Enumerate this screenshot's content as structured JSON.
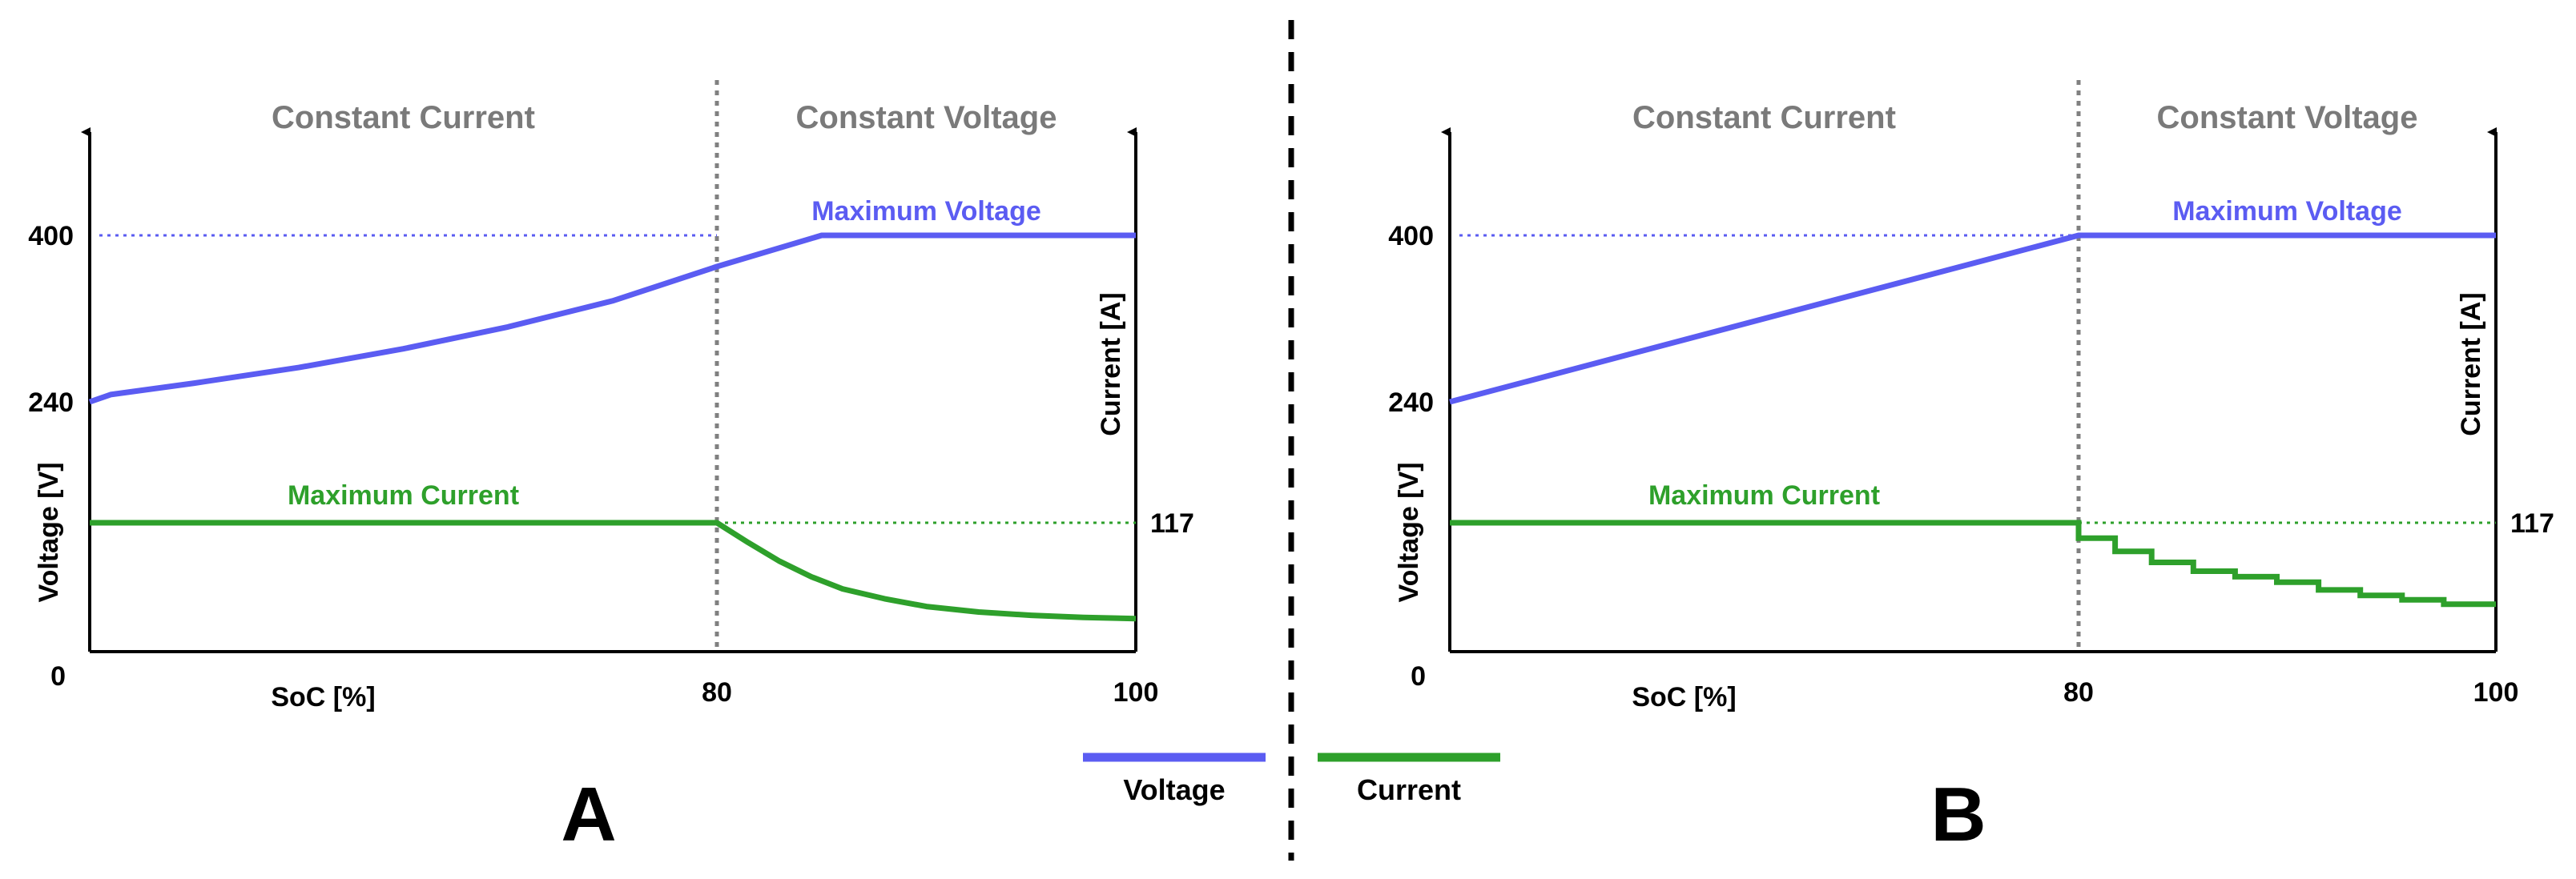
{
  "legend": {
    "voltage_label": "Voltage",
    "current_label": "Current",
    "voltage_color": "#5b5cf2",
    "current_color": "#2ea02b",
    "placement": "bottom-center"
  },
  "colors": {
    "voltage": "#5b5cf2",
    "current": "#2ea02b",
    "region_label": "#7a7a7a",
    "axis": "#000000",
    "divider": "#808080"
  },
  "chart_data": [
    {
      "panel_label": "A",
      "type": "line",
      "xlabel": "SoC [%]",
      "ylabel_left": "Voltage [V]",
      "ylabel_right": "Current [A]",
      "xlim": [
        0,
        100
      ],
      "ylim_left": [
        0,
        480
      ],
      "ylim_right": [
        0,
        300
      ],
      "x_ticks": [
        "80",
        "100"
      ],
      "y_ticks_left": [
        "400",
        "240",
        "0"
      ],
      "y_ticks_right": [
        "117"
      ],
      "regions": [
        "Constant Current",
        "Constant Voltage"
      ],
      "region_boundary_x": 80,
      "annotations": {
        "max_voltage": "Maximum Voltage",
        "max_current": "Maximum Current"
      },
      "max_voltage": 400,
      "max_current": 117,
      "series": [
        {
          "key": "voltage",
          "axis": "left",
          "points": [
            [
              0,
              240
            ],
            [
              2,
              247
            ],
            [
              10,
              258
            ],
            [
              20,
              273
            ],
            [
              30,
              291
            ],
            [
              40,
              312
            ],
            [
              50,
              337
            ],
            [
              60,
              370
            ],
            [
              70,
              400
            ],
            [
              80,
              400
            ],
            [
              90,
              400
            ],
            [
              100,
              400
            ]
          ]
        },
        {
          "key": "current",
          "axis": "right",
          "points": [
            [
              0,
              117
            ],
            [
              20,
              117
            ],
            [
              40,
              117
            ],
            [
              60,
              117
            ],
            [
              60,
              117
            ],
            [
              63,
              99
            ],
            [
              66,
              82
            ],
            [
              69,
              68
            ],
            [
              72,
              57
            ],
            [
              76,
              48
            ],
            [
              80,
              41
            ],
            [
              85,
              36
            ],
            [
              90,
              33
            ],
            [
              95,
              31
            ],
            [
              100,
              30
            ]
          ]
        }
      ]
    },
    {
      "panel_label": "B",
      "type": "line",
      "xlabel": "SoC [%]",
      "ylabel_left": "Voltage [V]",
      "ylabel_right": "Current [A]",
      "xlim": [
        0,
        100
      ],
      "ylim_left": [
        0,
        480
      ],
      "ylim_right": [
        0,
        300
      ],
      "x_ticks": [
        "80",
        "100"
      ],
      "y_ticks_left": [
        "400",
        "240",
        "0"
      ],
      "y_ticks_right": [
        "117"
      ],
      "regions": [
        "Constant Current",
        "Constant Voltage"
      ],
      "region_boundary_x": 80,
      "annotations": {
        "max_voltage": "Maximum Voltage",
        "max_current": "Maximum Current"
      },
      "max_voltage": 400,
      "max_current": 117,
      "series": [
        {
          "key": "voltage",
          "axis": "left",
          "points": [
            [
              0,
              240
            ],
            [
              60,
              400
            ],
            [
              100,
              400
            ]
          ]
        },
        {
          "key": "current",
          "axis": "right",
          "points": [
            [
              0,
              117
            ],
            [
              60,
              117
            ],
            [
              60,
              103
            ],
            [
              63.5,
              103
            ],
            [
              63.5,
              91
            ],
            [
              67,
              91
            ],
            [
              67,
              81
            ],
            [
              71,
              81
            ],
            [
              71,
              73
            ],
            [
              75,
              73
            ],
            [
              75,
              68
            ],
            [
              79,
              68
            ],
            [
              79,
              63
            ],
            [
              83,
              63
            ],
            [
              83,
              56
            ],
            [
              87,
              56
            ],
            [
              87,
              51
            ],
            [
              91,
              51
            ],
            [
              91,
              47
            ],
            [
              95,
              47
            ],
            [
              95,
              43
            ],
            [
              100,
              43
            ]
          ]
        }
      ]
    }
  ]
}
